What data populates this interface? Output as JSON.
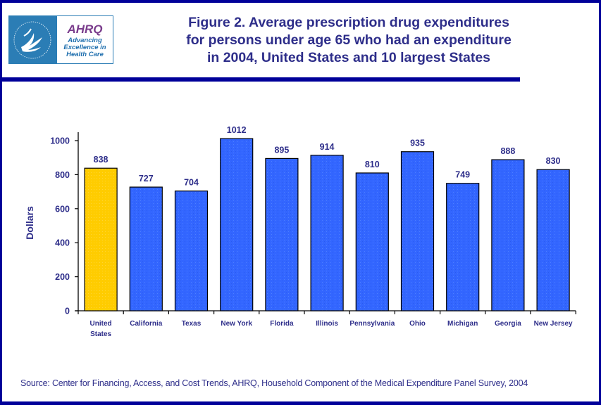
{
  "logo": {
    "hhs_label": "Department of Health & Human Services USA",
    "brand": "AHRQ",
    "tagline_lines": [
      "Advancing",
      "Excellence in",
      "Health Care"
    ]
  },
  "title_lines": [
    "Figure 2. Average prescription drug expenditures",
    "for persons under age 65 who had an expenditure",
    "in 2004, United States and 10 largest States"
  ],
  "source": "Source: Center for Financing, Access, and Cost Trends, AHRQ, Household Component of the Medical Expenditure Panel Survey, 2004",
  "colors": {
    "frame": "#000099",
    "text": "#2e2e8a",
    "us_bar": "#ffcc00",
    "state_bar": "#3366ff",
    "bar_outline": "#000000"
  },
  "chart_data": {
    "type": "bar",
    "title": "Figure 2. Average prescription drug expenditures for persons under age 65 who had an expenditure in 2004, United States and 10 largest States",
    "xlabel": "",
    "ylabel": "Dollars",
    "ylim": [
      0,
      1000
    ],
    "yticks": [
      0,
      200,
      400,
      600,
      800,
      1000
    ],
    "grid": false,
    "legend": "none",
    "categories": [
      [
        "United",
        "States"
      ],
      [
        "California"
      ],
      [
        "Texas"
      ],
      [
        "New York"
      ],
      [
        "Florida"
      ],
      [
        "Illinois"
      ],
      [
        "Pennsylvania"
      ],
      [
        "Ohio"
      ],
      [
        "Michigan"
      ],
      [
        "Georgia"
      ],
      [
        "New Jersey"
      ]
    ],
    "values": [
      838,
      727,
      704,
      1012,
      895,
      914,
      810,
      935,
      749,
      888,
      830
    ],
    "highlight_index": 0,
    "data_labels": [
      "838",
      "727",
      "704",
      "1012",
      "895",
      "914",
      "810",
      "935",
      "749",
      "888",
      "830"
    ]
  }
}
